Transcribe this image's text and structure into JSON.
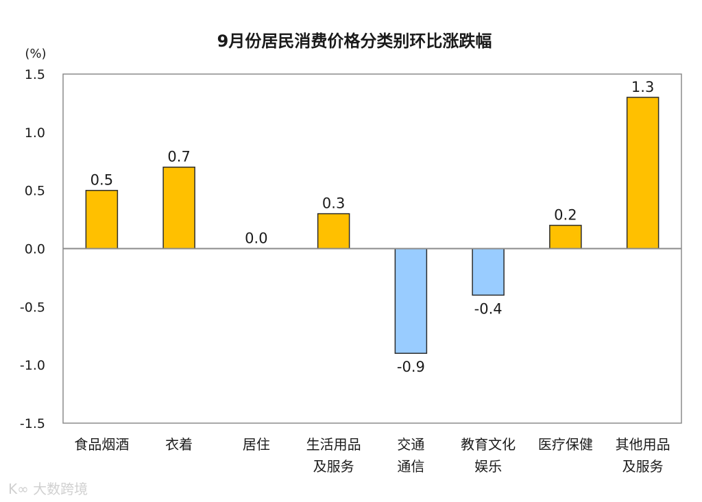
{
  "chart_data": {
    "type": "bar",
    "title": "9月份居民消费价格分类别环比涨跌幅",
    "ylabel": "(%)",
    "xlabel": "",
    "ylim": [
      -1.5,
      1.5
    ],
    "yticks": [
      "1.5",
      "1.0",
      "0.5",
      "0.0",
      "-0.5",
      "-1.0",
      "-1.5"
    ],
    "grid": false,
    "categories": [
      [
        "食品烟酒"
      ],
      [
        "衣着"
      ],
      [
        "居住"
      ],
      [
        "生活用品",
        "及服务"
      ],
      [
        "交通",
        "通信"
      ],
      [
        "教育文化",
        "娱乐"
      ],
      [
        "医疗保健"
      ],
      [
        "其他用品",
        "及服务"
      ]
    ],
    "values": [
      0.5,
      0.7,
      0.0,
      0.3,
      -0.9,
      -0.4,
      0.2,
      1.3
    ],
    "data_labels": [
      "0.5",
      "0.7",
      "0.0",
      "0.3",
      "-0.9",
      "-0.4",
      "0.2",
      "1.3"
    ],
    "colors": {
      "positive": "#FFC000",
      "negative": "#99CCFF",
      "border": "#2b2b2b"
    }
  },
  "watermark": "大数跨境"
}
